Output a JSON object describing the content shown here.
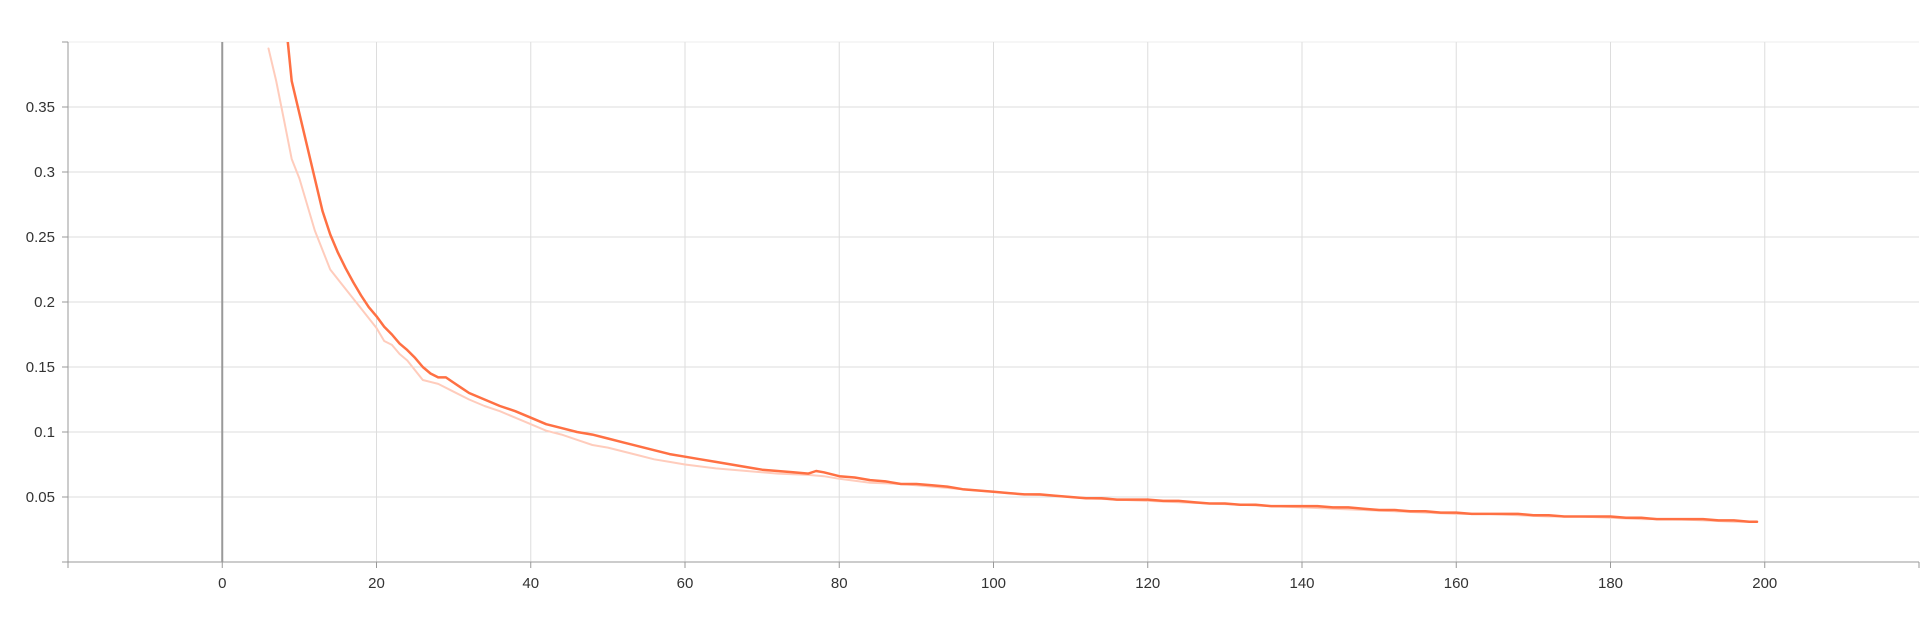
{
  "chart_data": {
    "type": "line",
    "title": "",
    "xlabel": "",
    "ylabel": "",
    "xlim": [
      -20,
      220
    ],
    "ylim": [
      0,
      0.4
    ],
    "grid": true,
    "x_ticks": [
      0,
      20,
      40,
      60,
      80,
      100,
      120,
      140,
      160,
      180,
      200
    ],
    "x_tick_labels": [
      "0",
      "20",
      "40",
      "60",
      "80",
      "100",
      "120",
      "140",
      "160",
      "180",
      "200"
    ],
    "y_ticks": [
      0.05,
      0.1,
      0.15,
      0.2,
      0.25,
      0.3,
      0.35
    ],
    "y_tick_labels": [
      "0.05",
      "0.1",
      "0.15",
      "0.2",
      "0.25",
      "0.3",
      "0.35"
    ],
    "colors": {
      "smoothed": "#ff7043",
      "raw": "#ffccbc",
      "grid": "#dddddd",
      "axis": "#999999",
      "zero_line": "#999999",
      "label": "#333333"
    },
    "series": [
      {
        "role": "raw",
        "x": [
          6,
          7,
          8,
          9,
          10,
          12,
          14,
          16,
          18,
          20,
          21,
          22,
          23,
          24,
          26,
          28,
          30,
          32,
          34,
          36,
          38,
          40,
          42,
          44,
          46,
          48,
          50,
          52,
          54,
          56,
          58,
          60,
          64,
          68,
          72,
          76,
          78,
          80,
          84,
          88,
          92,
          96,
          100,
          104,
          108,
          112,
          116,
          120,
          124,
          128,
          132,
          136,
          140,
          144,
          148,
          152,
          156,
          160,
          164,
          168,
          172,
          176,
          180,
          184,
          188,
          192,
          196,
          199
        ],
        "values": [
          0.395,
          0.37,
          0.34,
          0.31,
          0.295,
          0.255,
          0.225,
          0.21,
          0.195,
          0.18,
          0.17,
          0.167,
          0.16,
          0.155,
          0.14,
          0.137,
          0.131,
          0.125,
          0.12,
          0.116,
          0.111,
          0.106,
          0.101,
          0.098,
          0.094,
          0.09,
          0.088,
          0.085,
          0.082,
          0.079,
          0.077,
          0.075,
          0.072,
          0.07,
          0.068,
          0.067,
          0.066,
          0.064,
          0.061,
          0.06,
          0.058,
          0.056,
          0.054,
          0.052,
          0.051,
          0.049,
          0.048,
          0.047,
          0.046,
          0.045,
          0.044,
          0.043,
          0.042,
          0.041,
          0.04,
          0.039,
          0.038,
          0.037,
          0.037,
          0.036,
          0.035,
          0.035,
          0.034,
          0.033,
          0.033,
          0.032,
          0.031,
          0.031
        ]
      },
      {
        "role": "smoothed",
        "x": [
          8.5,
          9,
          10,
          11,
          12,
          13,
          14,
          15,
          16,
          17,
          18,
          19,
          20,
          21,
          22,
          23,
          24,
          25,
          26,
          27,
          28,
          29,
          30,
          31,
          32,
          34,
          36,
          38,
          40,
          42,
          44,
          46,
          48,
          50,
          52,
          54,
          56,
          58,
          60,
          62,
          64,
          66,
          68,
          70,
          72,
          74,
          76,
          77,
          78,
          80,
          82,
          84,
          86,
          88,
          90,
          92,
          94,
          96,
          98,
          100,
          102,
          104,
          106,
          108,
          110,
          112,
          114,
          116,
          118,
          120,
          122,
          124,
          126,
          128,
          130,
          132,
          134,
          136,
          138,
          140,
          142,
          144,
          146,
          148,
          150,
          152,
          154,
          156,
          158,
          160,
          162,
          164,
          166,
          168,
          170,
          172,
          174,
          176,
          178,
          180,
          182,
          184,
          186,
          188,
          190,
          192,
          194,
          196,
          198,
          199
        ],
        "values": [
          0.4,
          0.37,
          0.345,
          0.32,
          0.295,
          0.27,
          0.252,
          0.238,
          0.226,
          0.215,
          0.205,
          0.196,
          0.189,
          0.181,
          0.175,
          0.168,
          0.163,
          0.157,
          0.15,
          0.145,
          0.142,
          0.142,
          0.138,
          0.134,
          0.13,
          0.125,
          0.12,
          0.116,
          0.111,
          0.106,
          0.103,
          0.1,
          0.098,
          0.095,
          0.092,
          0.089,
          0.086,
          0.083,
          0.081,
          0.079,
          0.077,
          0.075,
          0.073,
          0.071,
          0.07,
          0.069,
          0.068,
          0.07,
          0.069,
          0.066,
          0.065,
          0.063,
          0.062,
          0.06,
          0.06,
          0.059,
          0.058,
          0.056,
          0.055,
          0.054,
          0.053,
          0.052,
          0.052,
          0.051,
          0.05,
          0.049,
          0.049,
          0.048,
          0.048,
          0.048,
          0.047,
          0.047,
          0.046,
          0.045,
          0.045,
          0.044,
          0.044,
          0.043,
          0.043,
          0.043,
          0.043,
          0.042,
          0.042,
          0.041,
          0.04,
          0.04,
          0.039,
          0.039,
          0.038,
          0.038,
          0.037,
          0.037,
          0.037,
          0.037,
          0.036,
          0.036,
          0.035,
          0.035,
          0.035,
          0.035,
          0.034,
          0.034,
          0.033,
          0.033,
          0.033,
          0.033,
          0.032,
          0.032,
          0.031,
          0.031
        ]
      }
    ]
  }
}
